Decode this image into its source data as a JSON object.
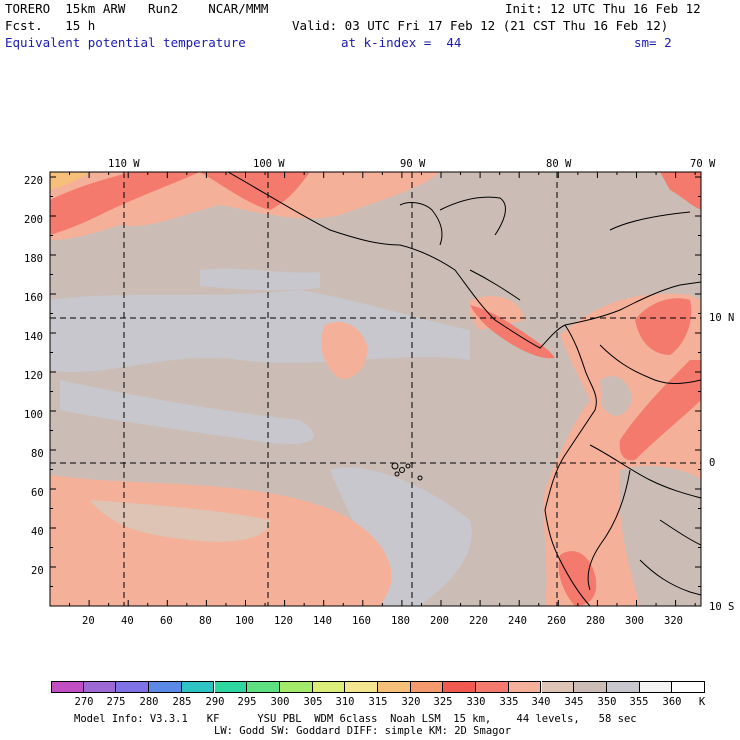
{
  "header": {
    "line1_left": "TORERO  15km ARW   Run2    NCAR/MMM",
    "line1_right": "Init: 12 UTC Thu 16 Feb 12",
    "line2_left": "Fcst.   15 h",
    "line2_right": "Valid: 03 UTC Fri 17 Feb 12 (21 CST Thu 16 Feb 12)",
    "field": "Equivalent potential temperature",
    "level": "at k-index =  44",
    "smoothing": "sm= 2"
  },
  "map": {
    "top_lon_labels": [
      "110 W",
      "100 W",
      "90 W",
      "80 W",
      "70 W"
    ],
    "right_lat_labels": [
      "10 N",
      "0",
      "10 S"
    ],
    "y_ticks": [
      "220",
      "200",
      "180",
      "160",
      "140",
      "120",
      "100",
      "80",
      "60",
      "40",
      "20"
    ],
    "x_ticks": [
      "20",
      "40",
      "60",
      "80",
      "100",
      "120",
      "140",
      "160",
      "180",
      "200",
      "220",
      "240",
      "260",
      "280",
      "300",
      "320"
    ]
  },
  "colorbar": {
    "labels": [
      "270",
      "275",
      "280",
      "285",
      "290",
      "295",
      "300",
      "305",
      "310",
      "315",
      "320",
      "325",
      "330",
      "335",
      "340",
      "345",
      "350",
      "355",
      "360"
    ],
    "unit": "K",
    "colors": [
      "#c24ec4",
      "#9d6ad3",
      "#7f72e6",
      "#5a8ae6",
      "#2fc4c4",
      "#2ed6a0",
      "#5ee080",
      "#a4ea6a",
      "#dcee7a",
      "#f4e690",
      "#f6c07a",
      "#f59a6e",
      "#f05a50",
      "#f37a6c",
      "#f5b09a",
      "#ddc4b5",
      "#cbbdb5",
      "#c7c7cd",
      "#f4f4f4",
      "#ffffff"
    ]
  },
  "footer": {
    "line1": "Model Info: V3.3.1   KF      YSU PBL  WDM 6class  Noah LSM  15 km,    44 levels,   58 sec",
    "line2": "LW: Godd SW: Goddard DIFF: simple KM: 2D Smagor"
  }
}
